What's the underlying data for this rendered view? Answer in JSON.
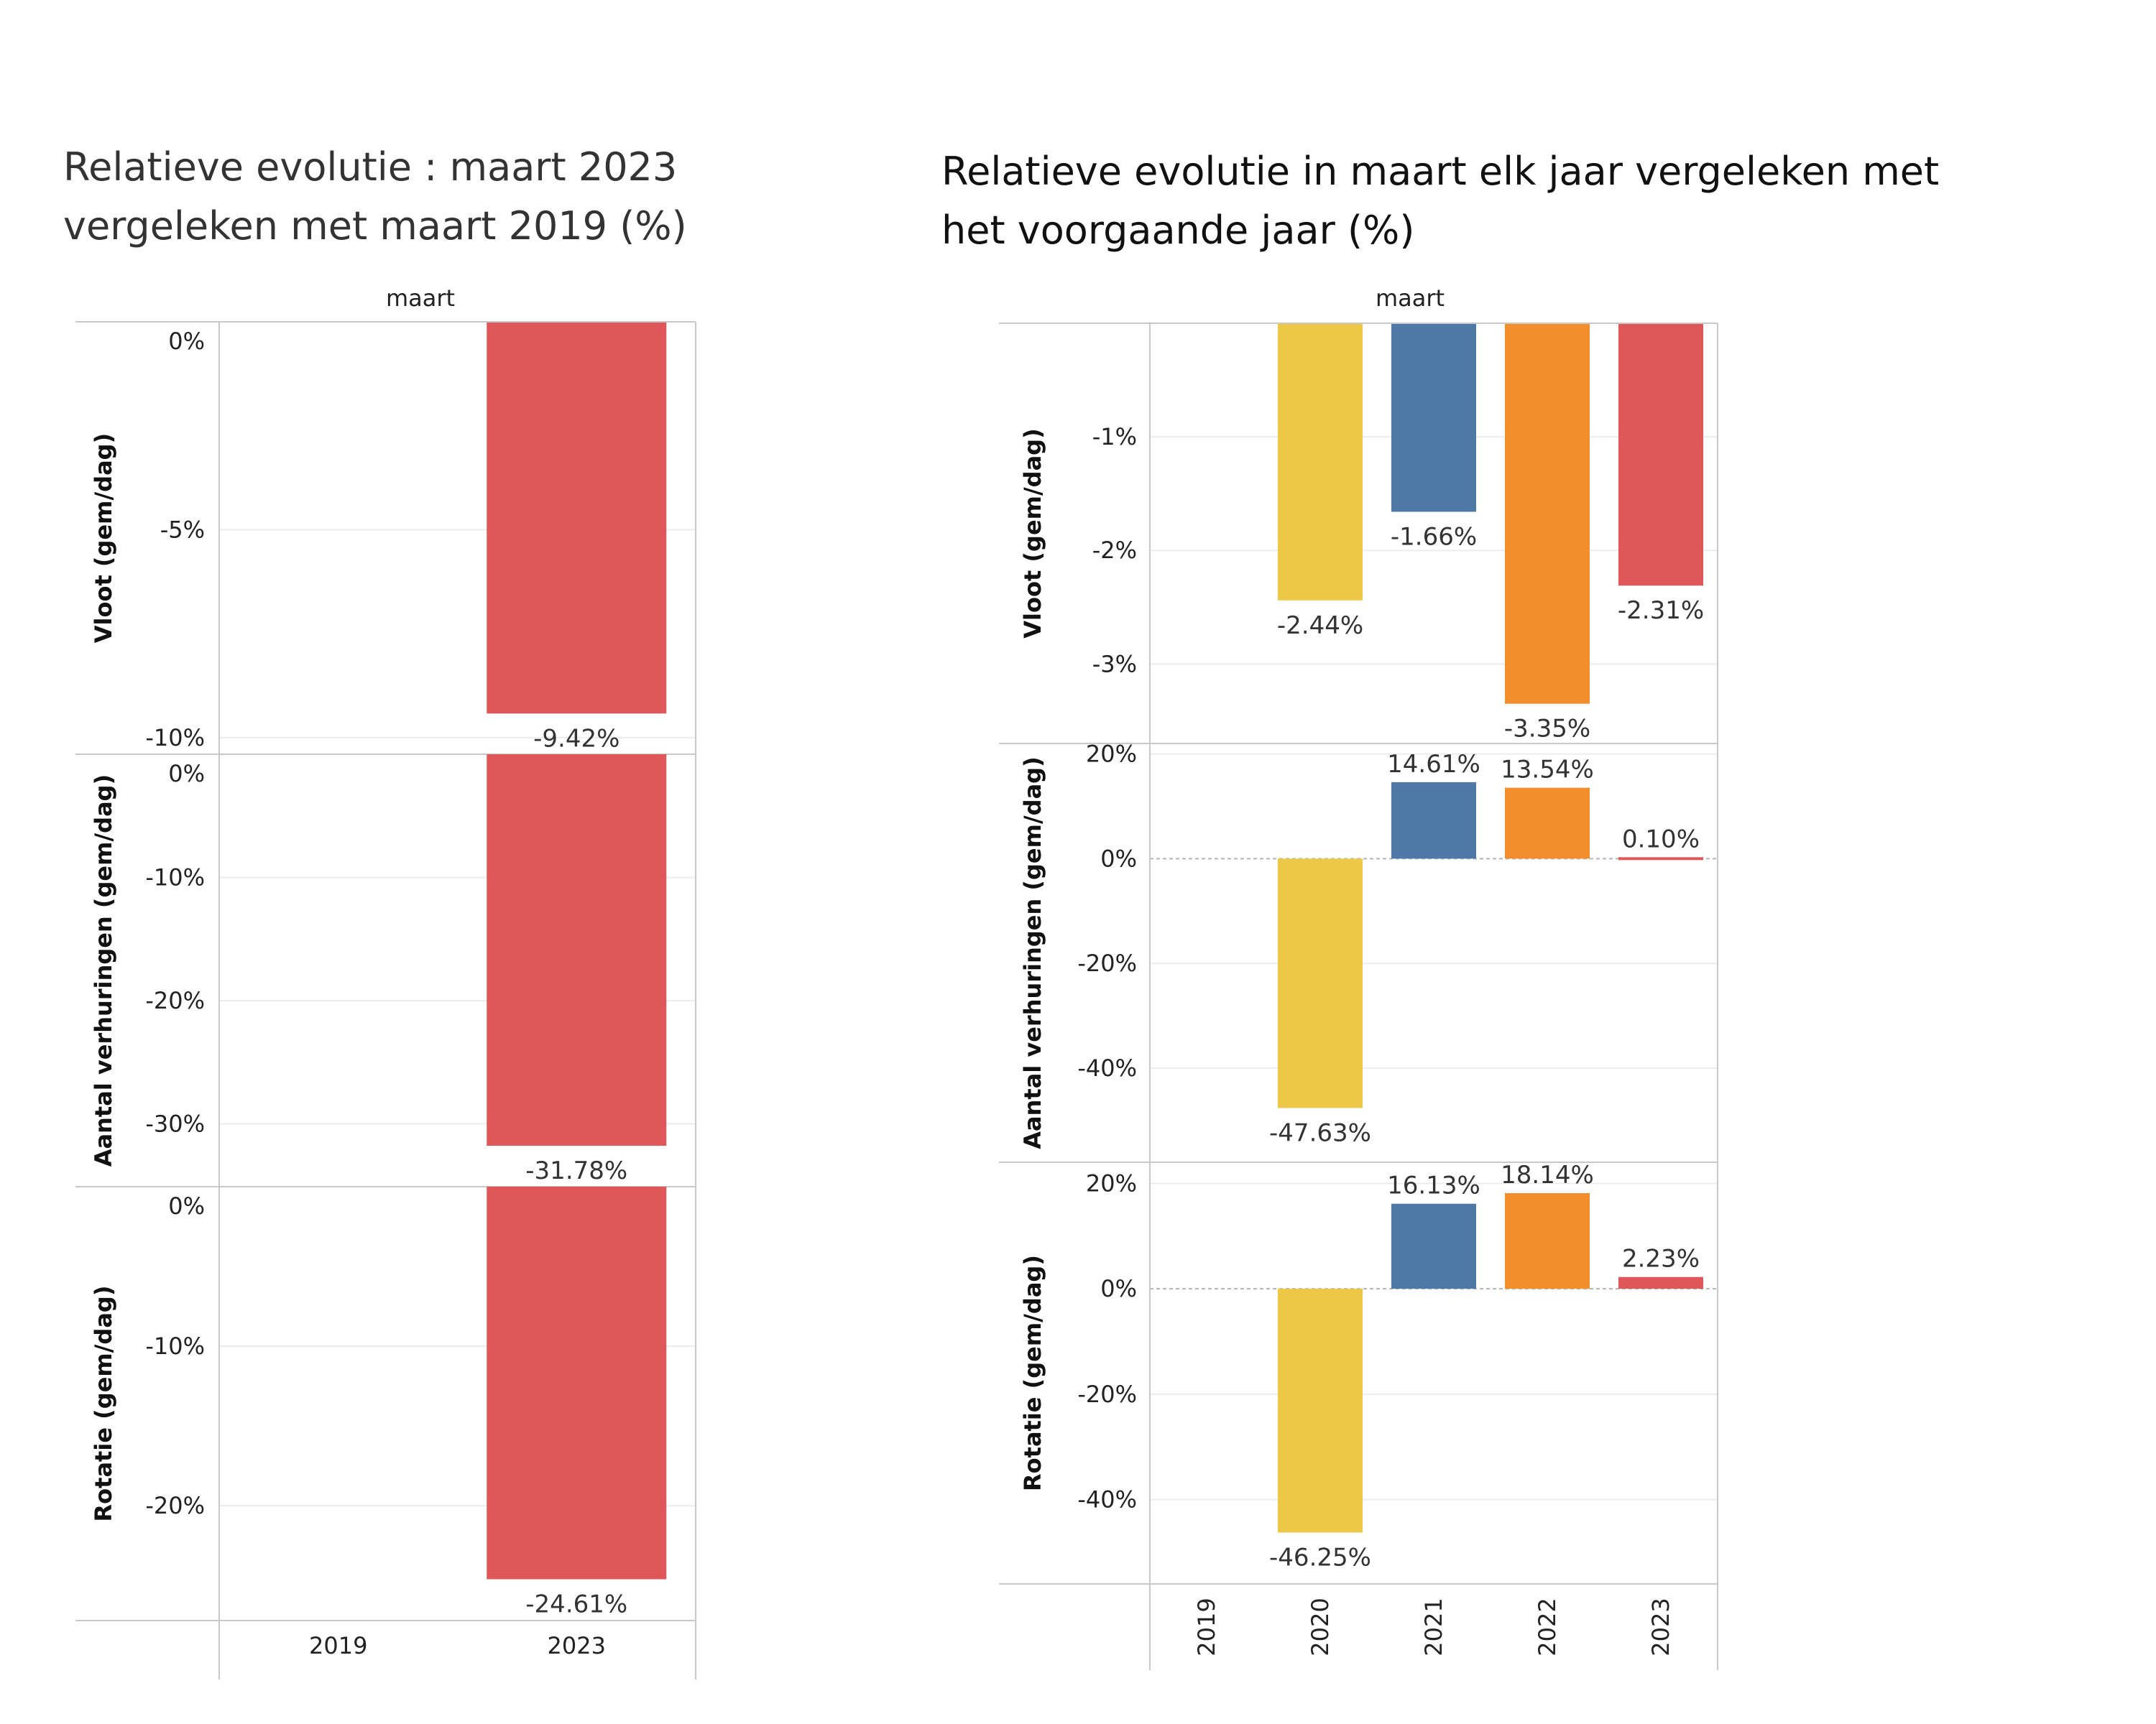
{
  "chart_data": [
    {
      "type": "bar",
      "title": "Relatieve evolutie : maart 2023 vergeleken met maart 2019 (%)",
      "column_header": "maart",
      "categories": [
        "2019",
        "2023"
      ],
      "bar_color": "#e05759",
      "panels": [
        {
          "ylabel": "Vloot (gem/dag)",
          "ylim": [
            -10.4,
            0
          ],
          "ticks": [
            0,
            -5,
            -10
          ],
          "tick_labels": [
            "0%",
            "-5%",
            "-10%"
          ],
          "values": [
            null,
            -9.42
          ],
          "labels": [
            "",
            "-9.42%"
          ]
        },
        {
          "ylabel": "Aantal verhuringen (gem/dag)",
          "ylim": [
            -35.1,
            0
          ],
          "ticks": [
            0,
            -10,
            -20,
            -30
          ],
          "tick_labels": [
            "0%",
            "-10%",
            "-20%",
            "-30%"
          ],
          "values": [
            null,
            -31.78
          ],
          "labels": [
            "",
            "-31.78%"
          ]
        },
        {
          "ylabel": "Rotatie (gem/dag)",
          "ylim": [
            -27.2,
            0
          ],
          "ticks": [
            0,
            -10,
            -20
          ],
          "tick_labels": [
            "0%",
            "-10%",
            "-20%"
          ],
          "values": [
            null,
            -24.61
          ],
          "labels": [
            "",
            "-24.61%"
          ]
        }
      ]
    },
    {
      "type": "bar",
      "title": "Relatieve evolutie in maart elk jaar vergeleken met het voorgaande jaar (%)",
      "column_header": "maart",
      "categories": [
        "2019",
        "2020",
        "2021",
        "2022",
        "2023"
      ],
      "bar_colors": [
        "#9aa0a6",
        "#ecc846",
        "#4e79a7",
        "#f28e2b",
        "#e05759"
      ],
      "panels": [
        {
          "ylabel": "Vloot (gem/dag)",
          "ylim": [
            -3.7,
            0
          ],
          "ticks": [
            -1,
            -2,
            -3
          ],
          "tick_labels": [
            "-1%",
            "-2%",
            "-3%"
          ],
          "values": [
            null,
            -2.44,
            -1.66,
            -3.35,
            -2.31
          ],
          "labels": [
            "",
            "-2.44%",
            "-1.66%",
            "-3.35%",
            "-2.31%"
          ]
        },
        {
          "ylabel": "Aantal verhuringen (gem/dag)",
          "ylim": [
            -58,
            22
          ],
          "ticks": [
            20,
            0,
            -20,
            -40
          ],
          "tick_labels": [
            "20%",
            "0%",
            "-20%",
            "-40%"
          ],
          "values": [
            null,
            -47.63,
            14.61,
            13.54,
            0.1
          ],
          "labels": [
            "",
            "-47.63%",
            "14.61%",
            "13.54%",
            "0.10%"
          ]
        },
        {
          "ylabel": "Rotatie (gem/dag)",
          "ylim": [
            -56,
            24
          ],
          "ticks": [
            20,
            0,
            -20,
            -40
          ],
          "tick_labels": [
            "20%",
            "0%",
            "-20%",
            "-40%"
          ],
          "values": [
            null,
            -46.25,
            16.13,
            18.14,
            2.23
          ],
          "labels": [
            "",
            "-46.25%",
            "16.13%",
            "18.14%",
            "2.23%"
          ]
        }
      ]
    }
  ]
}
